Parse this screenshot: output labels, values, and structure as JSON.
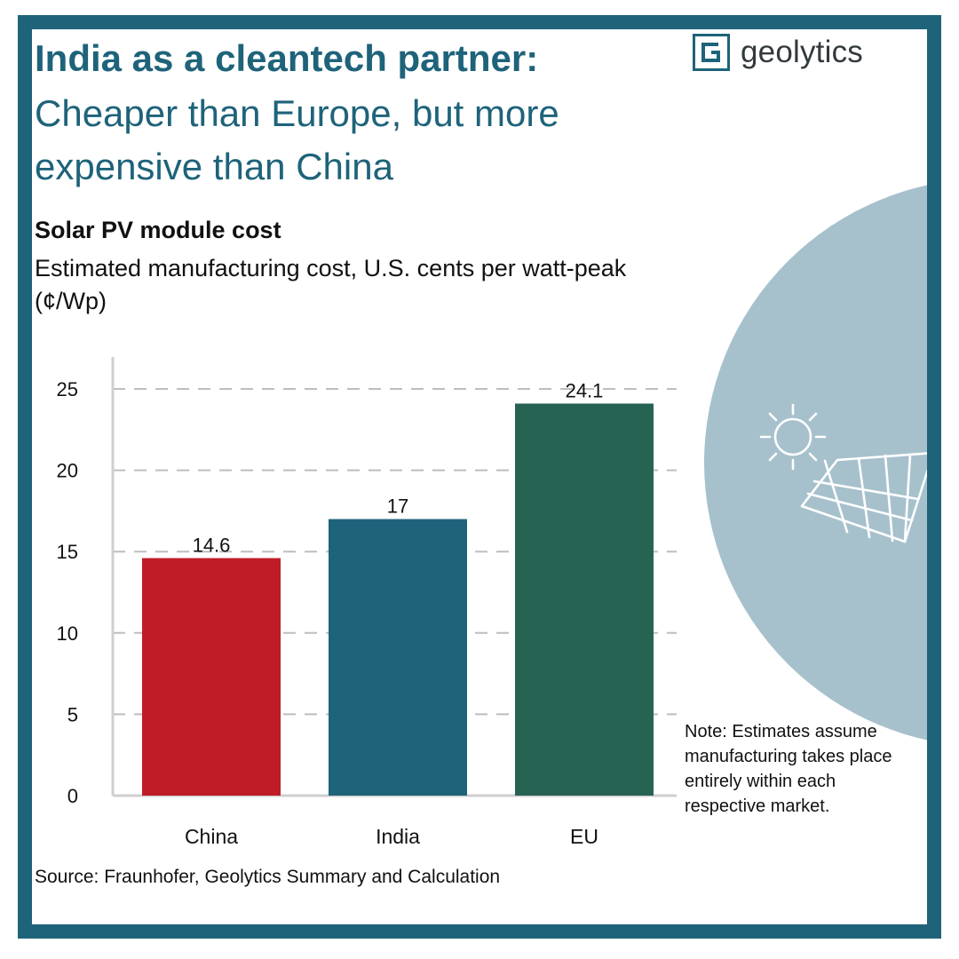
{
  "brand": {
    "name": "geolytics",
    "logo_letter": "G"
  },
  "header": {
    "title": "India as a cleantech partner:",
    "subtitle": "Cheaper than Europe, but more expensive than China"
  },
  "chart_data": {
    "type": "bar",
    "title": "Solar PV module cost",
    "subtitle": "Estimated manufacturing cost, U.S. cents per watt-peak (¢/Wp)",
    "categories": [
      "China",
      "India",
      "EU"
    ],
    "values": [
      14.6,
      17,
      24.1
    ],
    "value_labels": [
      "14.6",
      "17",
      "24.1"
    ],
    "colors": [
      "#c01c28",
      "#1e637a",
      "#276352"
    ],
    "ylim": [
      0,
      25
    ],
    "yticks": [
      0,
      5,
      10,
      15,
      20,
      25
    ],
    "ytick_labels": [
      "0",
      "5",
      "10",
      "15",
      "20",
      "25"
    ],
    "grid": true,
    "xlabel": "",
    "ylabel": ""
  },
  "note": "Note: Estimates assume manufacturing takes place entirely within each respective market.",
  "source": "Source: Fraunhofer, Geolytics Summary and Calculation",
  "theme": {
    "accent": "#1e637a",
    "decor_circle": "#a7c1cc"
  },
  "icons": {
    "decor": "solar-panel-sun-icon",
    "logo": "geolytics-logo-icon"
  }
}
